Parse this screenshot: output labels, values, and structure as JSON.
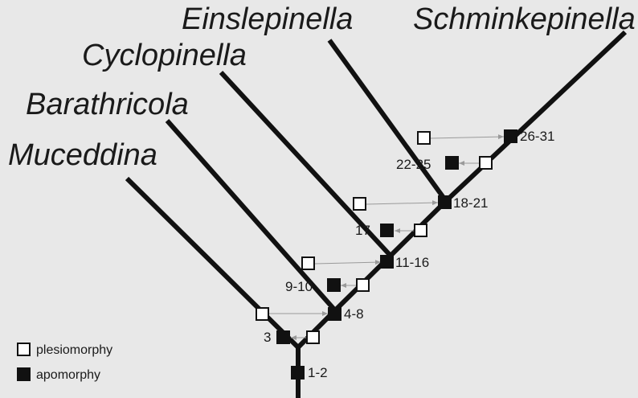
{
  "taxa": {
    "muceddina": "Muceddina",
    "barathricola": "Barathricola",
    "cyclopinella": "Cyclopinella",
    "einslepinella": "Einslepinella",
    "schminkepinella": "Schminkepinella"
  },
  "characters": {
    "c1": "1-2",
    "c2": "3",
    "c3": "4-8",
    "c4": "9-10",
    "c5": "11-16",
    "c6": "17",
    "c7": "18-21",
    "c8": "22-25",
    "c9": "26-31"
  },
  "legend": {
    "plesiomorphy": "plesiomorphy",
    "apomorphy": "apomorphy"
  },
  "colors": {
    "background": "#e8e8e8",
    "branch": "#111111",
    "arrow": "#9a9a9a"
  }
}
